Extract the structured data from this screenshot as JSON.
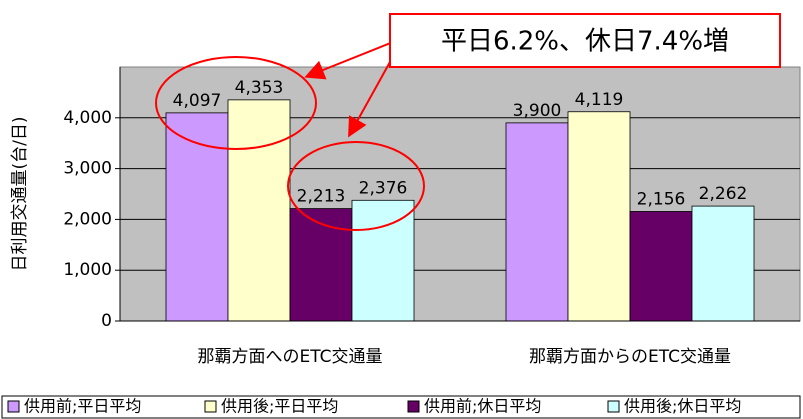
{
  "chart_data": {
    "type": "bar",
    "ylabel": "日利用交通量(台/日)",
    "annotation": "平日6.2%、休日7.4%増",
    "categories": [
      "那覇方面へのETC交通量",
      "那覇方面からのETC交通量"
    ],
    "series": [
      {
        "name": "供用前;平日平均",
        "color": "#cc99ff",
        "values": [
          4097,
          3900
        ],
        "value_labels": [
          "4,097",
          "3,900"
        ]
      },
      {
        "name": "供用後;平日平均",
        "color": "#ffffcc",
        "values": [
          4353,
          4119
        ],
        "value_labels": [
          "4,353",
          "4,119"
        ]
      },
      {
        "name": "供用前;休日平均",
        "color": "#660066",
        "values": [
          2213,
          2156
        ],
        "value_labels": [
          "2,213",
          "2,156"
        ]
      },
      {
        "name": "供用後;休日平均",
        "color": "#ccffff",
        "values": [
          2376,
          2262
        ],
        "value_labels": [
          "2,376",
          "2,262"
        ]
      }
    ],
    "ylim": [
      0,
      5000
    ],
    "yticks": [
      0,
      {
        "value": 1000,
        "label": "1,000"
      },
      {
        "value": 2000,
        "label": "2,000"
      },
      {
        "value": 3000,
        "label": "3,000"
      },
      {
        "value": 4000,
        "label": "4,000"
      }
    ],
    "grid": true,
    "legend": "bottom",
    "plot_background": "#c0c0c0"
  }
}
